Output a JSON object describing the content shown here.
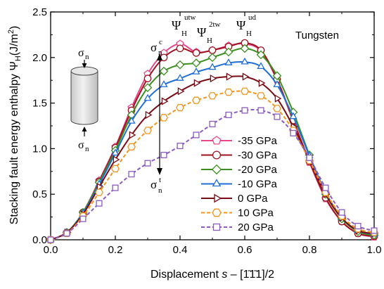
{
  "chart_data": {
    "type": "line",
    "material_label": "Tungsten",
    "xlabel_main": "Displacement ",
    "xlabel_var": "s",
    "xlabel_rest": " – [1̄1̄1]/2",
    "ylabel": "Stacking fault energy enthalpy Ψ",
    "ylabel_sub": "H",
    "ylabel_unit": "(J/m",
    "ylabel_unit_sup": "2",
    "ylabel_close": ")",
    "xlim": [
      0.0,
      1.0
    ],
    "ylim": [
      0.0,
      2.5
    ],
    "xticks": [
      "0.0",
      "0.2",
      "0.4",
      "0.6",
      "0.8",
      "1.0"
    ],
    "yticks": [
      "0.0",
      "0.5",
      "1.0",
      "1.5",
      "2.0",
      "2.5"
    ],
    "annotations": {
      "psi": "Ψ",
      "psi_sub": "H",
      "utw": "utw",
      "twotw": "2tw",
      "ud": "ud",
      "sigma": "σ",
      "n": "n",
      "c": "c",
      "t": "t"
    },
    "x": [
      0.0,
      0.05,
      0.1,
      0.15,
      0.2,
      0.25,
      0.3,
      0.35,
      0.4,
      0.45,
      0.5,
      0.55,
      0.6,
      0.65,
      0.7,
      0.75,
      0.8,
      0.85,
      0.9,
      0.95,
      1.0
    ],
    "series": [
      {
        "name": "-35 GPa",
        "color": "#e8458b",
        "marker": "pentagon",
        "dash": "solid",
        "values": [
          0.0,
          0.08,
          0.3,
          0.65,
          1.02,
          1.45,
          1.82,
          2.05,
          2.15,
          2.06,
          2.08,
          2.13,
          2.15,
          2.07,
          1.75,
          1.3,
          0.85,
          0.45,
          0.2,
          0.07,
          0.03
        ]
      },
      {
        "name": "-30 GPa",
        "color": "#a0121f",
        "marker": "circle",
        "dash": "solid",
        "values": [
          0.0,
          0.08,
          0.3,
          0.64,
          1.01,
          1.42,
          1.77,
          2.0,
          2.1,
          2.05,
          2.08,
          2.12,
          2.16,
          2.08,
          1.76,
          1.31,
          0.86,
          0.46,
          0.2,
          0.07,
          0.04
        ]
      },
      {
        "name": "-20 GPa",
        "color": "#3a8f1f",
        "marker": "diamond",
        "dash": "solid",
        "values": [
          0.0,
          0.08,
          0.3,
          0.63,
          0.98,
          1.37,
          1.67,
          1.85,
          1.92,
          1.94,
          2.0,
          2.06,
          2.1,
          2.03,
          1.8,
          1.4,
          0.93,
          0.5,
          0.23,
          0.09,
          0.05
        ]
      },
      {
        "name": "-10 GPa",
        "color": "#1f6fd6",
        "marker": "triangle-up",
        "dash": "solid",
        "values": [
          0.0,
          0.08,
          0.29,
          0.61,
          0.95,
          1.3,
          1.55,
          1.7,
          1.77,
          1.84,
          1.89,
          1.94,
          1.95,
          1.9,
          1.7,
          1.35,
          0.92,
          0.52,
          0.24,
          0.1,
          0.06
        ]
      },
      {
        "name": "0 GPa",
        "color": "#7a0c14",
        "marker": "triangle-right",
        "dash": "solid",
        "values": [
          0.0,
          0.08,
          0.28,
          0.58,
          0.88,
          1.15,
          1.37,
          1.52,
          1.63,
          1.72,
          1.77,
          1.79,
          1.79,
          1.72,
          1.55,
          1.24,
          0.87,
          0.5,
          0.24,
          0.1,
          0.07
        ]
      },
      {
        "name": "10 GPa",
        "color": "#f0951f",
        "marker": "hexagon",
        "dash": "dashed",
        "values": [
          0.0,
          0.07,
          0.26,
          0.52,
          0.78,
          1.02,
          1.2,
          1.34,
          1.45,
          1.53,
          1.58,
          1.62,
          1.63,
          1.58,
          1.44,
          1.2,
          0.87,
          0.52,
          0.26,
          0.12,
          0.08
        ]
      },
      {
        "name": "20 GPa",
        "color": "#8a5bc0",
        "marker": "square",
        "dash": "dashed",
        "values": [
          0.0,
          0.07,
          0.23,
          0.4,
          0.57,
          0.72,
          0.84,
          0.93,
          1.03,
          1.15,
          1.27,
          1.37,
          1.42,
          1.42,
          1.35,
          1.17,
          0.9,
          0.57,
          0.3,
          0.15,
          0.1
        ]
      }
    ]
  }
}
